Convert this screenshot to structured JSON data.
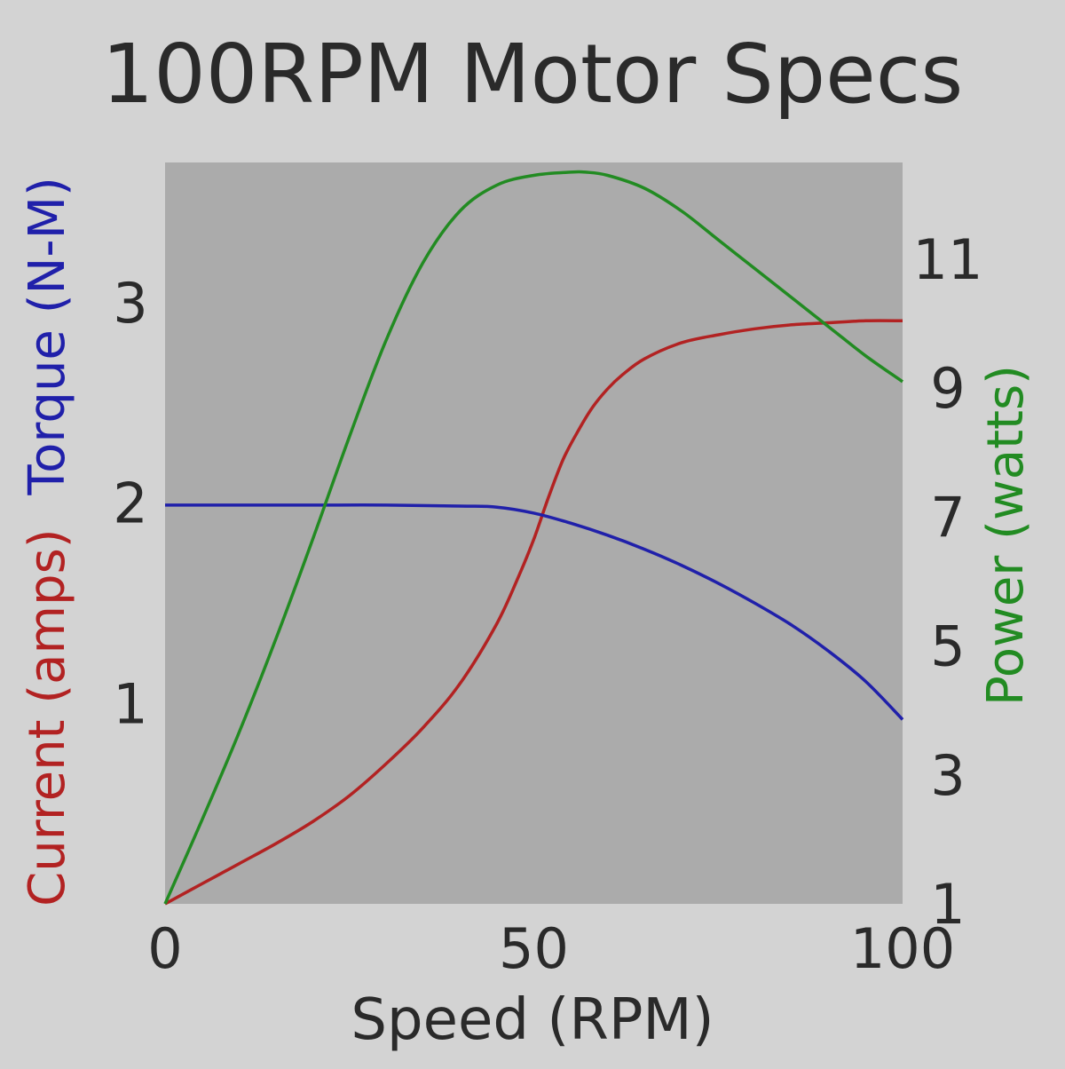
{
  "chart_data": {
    "type": "line",
    "title": "100RPM Motor Specs",
    "xlabel": "Speed (RPM)",
    "ylabel_left": [
      {
        "text": "Current (amps)",
        "color": "#b22222"
      },
      {
        "text": "Torque (N-M)",
        "color": "#2020aa"
      }
    ],
    "ylabel_right": {
      "text": "Power (watts)",
      "color": "#228b22"
    },
    "xlim": [
      0,
      100
    ],
    "ylim_left": [
      0,
      3.7
    ],
    "ylim_right": [
      1,
      12.5
    ],
    "x_ticks": [
      0,
      50,
      100
    ],
    "x_tick_labels": [
      "0",
      "50",
      "100"
    ],
    "y_left_ticks": [
      1,
      2,
      3
    ],
    "y_left_tick_labels": [
      "1",
      "2",
      "3"
    ],
    "y_right_ticks": [
      1,
      3,
      5,
      7,
      9,
      11
    ],
    "y_right_tick_labels": [
      "1",
      "3",
      "5",
      "7",
      "9",
      "11"
    ],
    "grid": false,
    "plot_background": "#ababab",
    "series": [
      {
        "name": "Current (amps)",
        "color": "#b22222",
        "axis": "left",
        "x": [
          0,
          5,
          10,
          15,
          20,
          25,
          30,
          35,
          40,
          45,
          48,
          50,
          52,
          54,
          56,
          58,
          60,
          62,
          65,
          70,
          75,
          80,
          85,
          90,
          95,
          100
        ],
        "y": [
          0,
          0.1,
          0.2,
          0.3,
          0.41,
          0.54,
          0.7,
          0.88,
          1.1,
          1.4,
          1.64,
          1.82,
          2.03,
          2.22,
          2.36,
          2.48,
          2.57,
          2.64,
          2.72,
          2.8,
          2.84,
          2.87,
          2.89,
          2.9,
          2.91,
          2.91
        ]
      },
      {
        "name": "Torque (N-M)",
        "color": "#2020aa",
        "axis": "left",
        "x": [
          0,
          10,
          20,
          30,
          40,
          45,
          50,
          55,
          60,
          65,
          70,
          75,
          80,
          85,
          90,
          95,
          100
        ],
        "y": [
          1.99,
          1.99,
          1.99,
          1.99,
          1.985,
          1.98,
          1.95,
          1.9,
          1.84,
          1.77,
          1.69,
          1.6,
          1.5,
          1.39,
          1.26,
          1.11,
          0.92
        ]
      },
      {
        "name": "Power (watts)",
        "color": "#228b22",
        "axis": "right",
        "x": [
          0,
          5,
          10,
          15,
          20,
          25,
          30,
          35,
          40,
          45,
          50,
          55,
          57,
          60,
          65,
          70,
          75,
          80,
          85,
          90,
          95,
          100
        ],
        "y": [
          1,
          2.3,
          3.65,
          5.1,
          6.65,
          8.25,
          9.75,
          10.95,
          11.75,
          12.15,
          12.3,
          12.35,
          12.35,
          12.3,
          12.1,
          11.75,
          11.3,
          10.85,
          10.4,
          9.95,
          9.5,
          9.1
        ]
      }
    ]
  }
}
